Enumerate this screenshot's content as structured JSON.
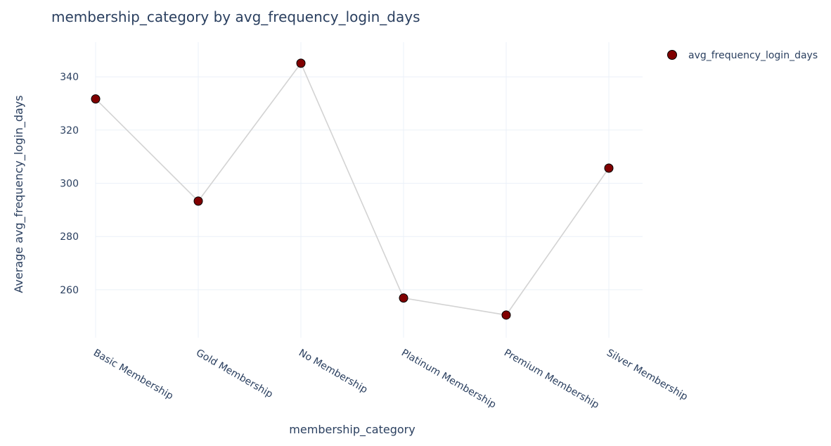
{
  "chart_data": {
    "type": "line",
    "title": "membership_category by avg_frequency_login_days",
    "xlabel": "membership_category",
    "ylabel": "Average avg_frequency_login_days",
    "categories": [
      "Basic Membership",
      "Gold Membership",
      "No Membership",
      "Platinum Membership",
      "Premium Membership",
      "Silver Membership"
    ],
    "series": [
      {
        "name": "avg_frequency_login_days",
        "values": [
          331.7,
          293.3,
          345.1,
          256.9,
          250.5,
          305.7
        ],
        "marker_color": "#800000",
        "marker_edge_color": "#000000",
        "line_color": "#d3d3d3"
      }
    ],
    "yticks": [
      260,
      280,
      300,
      320,
      340
    ],
    "ylim": [
      242,
      353
    ],
    "grid": true,
    "legend_position": "top-right"
  },
  "colors": {
    "text": "#2a3f5f",
    "grid": "#ebf0f8",
    "background": "#ffffff"
  }
}
